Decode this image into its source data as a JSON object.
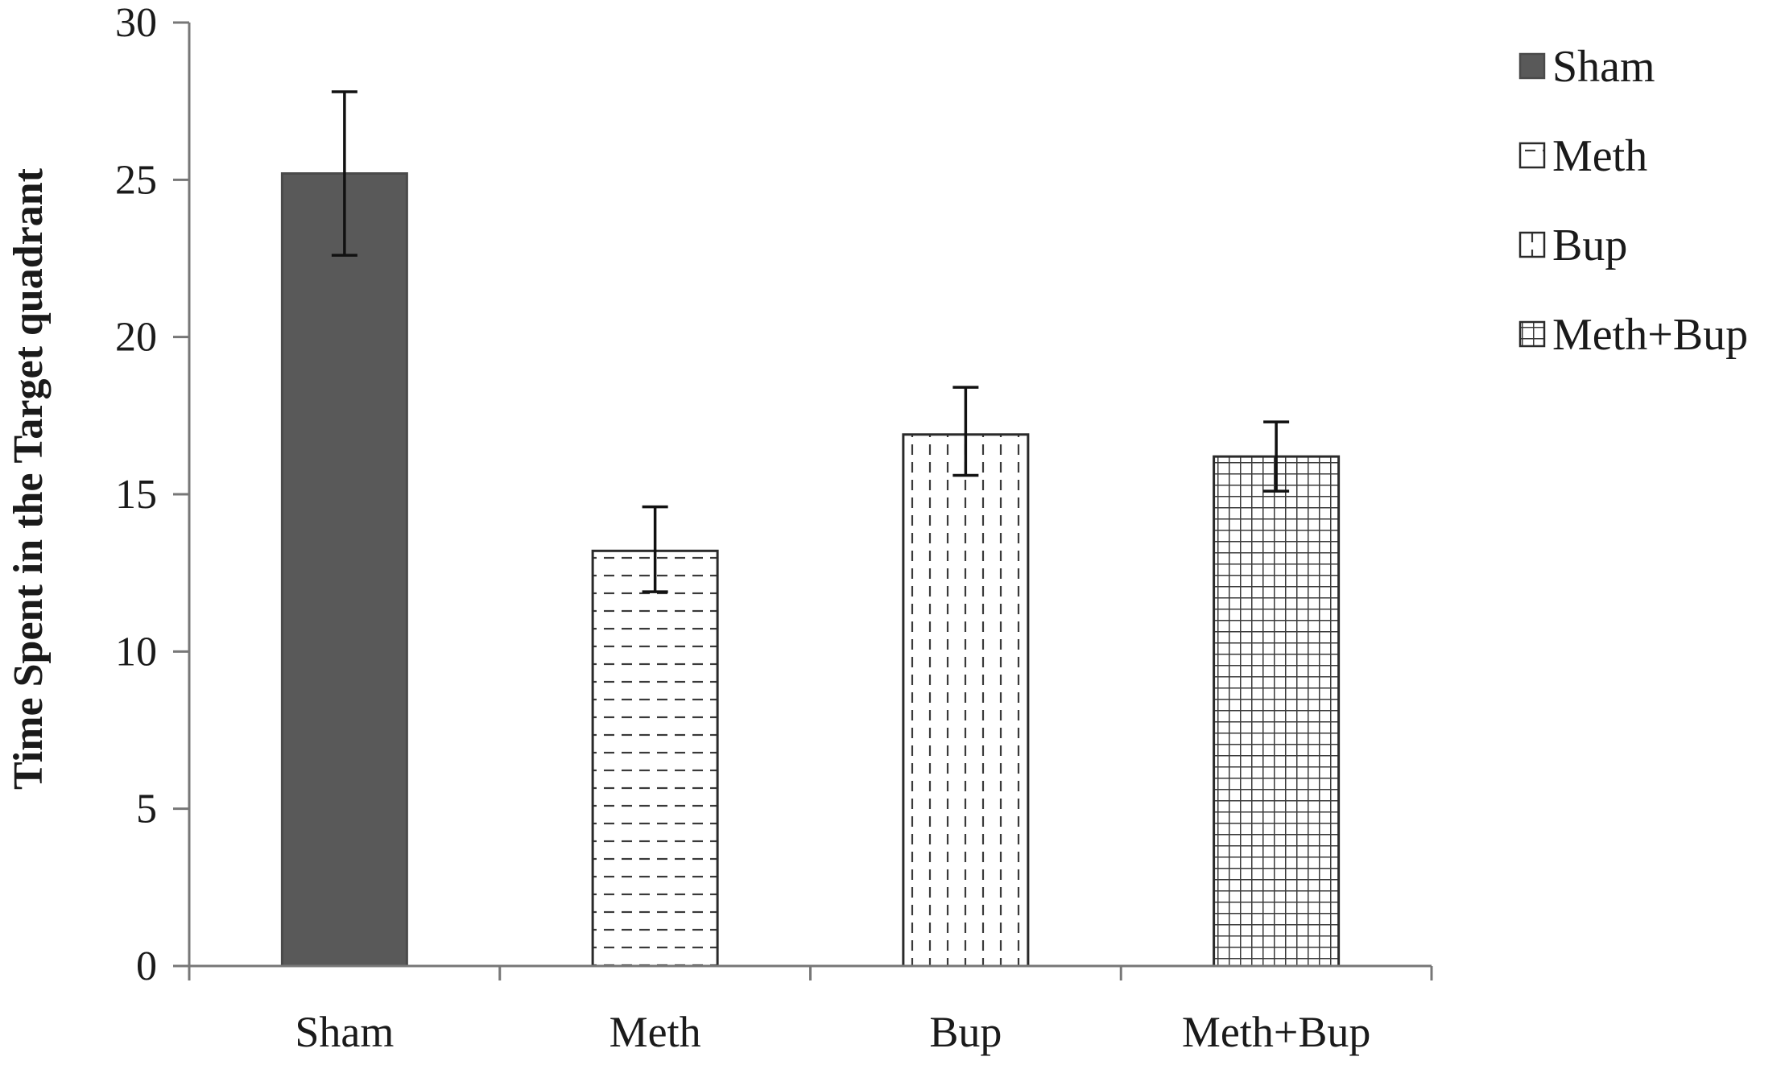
{
  "chart_data": {
    "type": "bar",
    "categories": [
      "Sham",
      "Meth",
      "Bup",
      "Meth+Bup"
    ],
    "values": [
      25.2,
      13.2,
      16.9,
      16.2
    ],
    "error_high": [
      27.8,
      14.6,
      18.4,
      17.3
    ],
    "error_low": [
      22.6,
      11.9,
      15.6,
      15.1
    ],
    "title": "",
    "xlabel": "",
    "ylabel": "Time Spent in the Target quadrant",
    "ylim": [
      0,
      30
    ],
    "yticks": [
      0,
      5,
      10,
      15,
      20,
      25,
      30
    ],
    "grid": false,
    "legend": {
      "placement": "right",
      "entries": [
        "Sham",
        "Meth",
        "Bup",
        "Meth+Bup"
      ]
    },
    "series_styles": [
      {
        "pattern": "solid",
        "color": "#595959"
      },
      {
        "pattern": "horizontal-dashes",
        "color": "#3a3a3a"
      },
      {
        "pattern": "vertical-dashes",
        "color": "#3a3a3a"
      },
      {
        "pattern": "grid",
        "color": "#3a3a3a"
      }
    ]
  }
}
